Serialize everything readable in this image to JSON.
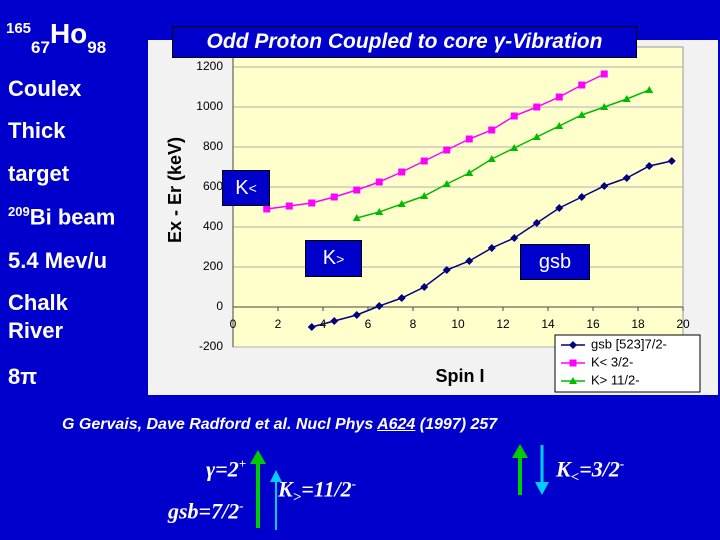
{
  "slide": {
    "nucleus": {
      "mass": "165",
      "z": "67",
      "symbol": "Ho",
      "n": "98"
    },
    "left": [
      "Coulex",
      "Thick",
      "target"
    ],
    "beam": {
      "mass": "209",
      "text": "Bi beam"
    },
    "energy": "5.4 Mev/u",
    "lab": [
      "Chalk",
      "River"
    ],
    "detector": "8π",
    "citation": {
      "before": "G Gervais, Dave Radford et al.  Nucl Phys ",
      "ref": "A624",
      "after": " (1997) 257"
    },
    "bottom": {
      "gamma": {
        "text": "γ=2",
        "sup": "+"
      },
      "gsb": {
        "text": "gsb=7/2",
        "sup": "-"
      },
      "kgt": {
        "k": "K",
        "sub": ">",
        "rest": "=11/2",
        "sup": "-"
      },
      "klt": {
        "k": "K",
        "sub": "<",
        "rest": "=3/2",
        "sup": "-"
      }
    }
  },
  "chart_data": {
    "type": "line",
    "title": "Odd Proton Coupled to core γ-Vibration",
    "xlabel": "Spin I",
    "ylabel": "Ex - Er (keV)",
    "xlim": [
      0,
      20
    ],
    "xticks": [
      0,
      2,
      4,
      6,
      8,
      10,
      12,
      14,
      16,
      18,
      20
    ],
    "ylim": [
      -200,
      1300
    ],
    "yticks": [
      -200,
      0,
      200,
      400,
      600,
      800,
      1000,
      1200
    ],
    "grid": true,
    "legend": "lower right",
    "series": [
      {
        "name": "gsb [523]7/2-",
        "color": "#000080",
        "marker": "diamond",
        "x": [
          3.5,
          4.5,
          5.5,
          6.5,
          7.5,
          8.5,
          9.5,
          10.5,
          11.5,
          12.5,
          13.5,
          14.5,
          15.5,
          16.5,
          17.5,
          18.5,
          19.5
        ],
        "values": [
          -100,
          -70,
          -40,
          5,
          45,
          100,
          185,
          230,
          295,
          345,
          420,
          495,
          550,
          605,
          645,
          705,
          730
        ]
      },
      {
        "name": "K< 3/2-",
        "color": "#ff00ff",
        "marker": "square",
        "x": [
          1.5,
          2.5,
          3.5,
          4.5,
          5.5,
          6.5,
          7.5,
          8.5,
          9.5,
          10.5,
          11.5,
          12.5,
          13.5,
          14.5,
          15.5,
          16.5
        ],
        "values": [
          490,
          505,
          520,
          550,
          585,
          625,
          675,
          730,
          785,
          840,
          885,
          955,
          1000,
          1050,
          1110,
          1165
        ]
      },
      {
        "name": "K> 11/2-",
        "color": "#00bb00",
        "marker": "triangle",
        "x": [
          5.5,
          6.5,
          7.5,
          8.5,
          9.5,
          10.5,
          11.5,
          12.5,
          13.5,
          14.5,
          15.5,
          16.5,
          17.5,
          18.5
        ],
        "values": [
          445,
          475,
          515,
          555,
          615,
          670,
          740,
          795,
          850,
          905,
          960,
          1000,
          1040,
          1085
        ]
      }
    ],
    "annotations": [
      {
        "k": "K",
        "sub": "<"
      },
      {
        "k": "K",
        "sub": ">"
      },
      {
        "k": "gsb"
      }
    ]
  }
}
